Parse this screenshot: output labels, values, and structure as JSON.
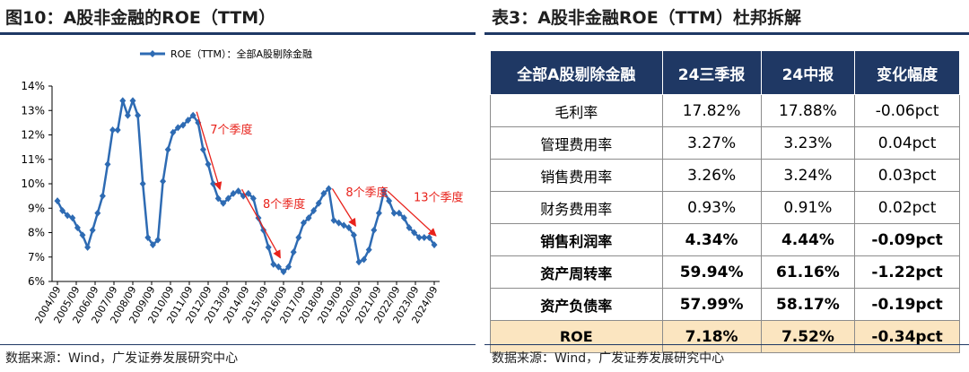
{
  "left": {
    "title": "图10：A股非金融的ROE（TTM）",
    "source": "数据来源：Wind，广发证券发展研究中心"
  },
  "right": {
    "title": "表3：A股非金融ROE（TTM）杜邦拆解",
    "source": "数据来源：Wind，广发证券发展研究中心"
  },
  "colors": {
    "line": "#2e6bb3",
    "header": "#1f3864",
    "roe_row": "#fbe5c0",
    "annotation": "#e8221b"
  },
  "chart_data": {
    "type": "line",
    "legend": "ROE（TTM）：全部A股剔除金融",
    "legend_position": "top",
    "ylim": [
      6,
      14
    ],
    "yticks": [
      "6%",
      "7%",
      "8%",
      "9%",
      "10%",
      "11%",
      "12%",
      "13%",
      "14%"
    ],
    "xlabels": [
      "2004/09",
      "2005/09",
      "2006/09",
      "2007/09",
      "2008/09",
      "2009/09",
      "2010/09",
      "2011/09",
      "2012/09",
      "2013/09",
      "2014/09",
      "2015/09",
      "2016/09",
      "2017/09",
      "2018/09",
      "2019/09",
      "2020/09",
      "2021/09",
      "2022/09",
      "2023/09",
      "2024/09"
    ],
    "series": [
      {
        "name": "ROE（TTM）：全部A股剔除金融",
        "values": [
          9.3,
          8.9,
          8.7,
          8.6,
          8.2,
          7.9,
          7.4,
          8.1,
          8.8,
          9.5,
          10.8,
          12.2,
          12.2,
          13.4,
          12.8,
          13.4,
          12.8,
          10.0,
          7.8,
          7.5,
          7.7,
          10.1,
          11.4,
          12.1,
          12.3,
          12.4,
          12.6,
          12.8,
          12.5,
          11.4,
          10.8,
          10.0,
          9.4,
          9.2,
          9.4,
          9.6,
          9.7,
          9.5,
          9.6,
          9.4,
          8.6,
          8.1,
          7.4,
          6.7,
          6.6,
          6.4,
          6.6,
          7.2,
          7.8,
          8.4,
          8.6,
          8.9,
          9.2,
          9.6,
          9.8,
          8.5,
          8.4,
          8.3,
          8.2,
          7.9,
          6.8,
          6.9,
          7.3,
          8.1,
          8.8,
          9.7,
          9.3,
          8.8,
          8.8,
          8.6,
          8.2,
          8.0,
          7.8,
          7.8,
          7.8,
          7.5
        ]
      }
    ],
    "annotations": [
      "7个季度",
      "8个季度",
      "8个季度",
      "13个季度"
    ],
    "grid": false
  },
  "table": {
    "headers": [
      "全部A股剔除金融",
      "24三季报",
      "24中报",
      "变化幅度"
    ],
    "rows": [
      [
        "毛利率",
        "17.82%",
        "17.88%",
        "-0.06pct"
      ],
      [
        "管理费用率",
        "3.27%",
        "3.23%",
        "0.04pct"
      ],
      [
        "销售费用率",
        "3.26%",
        "3.24%",
        "0.03pct"
      ],
      [
        "财务费用率",
        "0.93%",
        "0.91%",
        "0.02pct"
      ],
      [
        "销售利润率",
        "4.34%",
        "4.44%",
        "-0.09pct"
      ],
      [
        "资产周转率",
        "59.94%",
        "61.16%",
        "-1.22pct"
      ],
      [
        "资产负债率",
        "57.99%",
        "58.17%",
        "-0.19pct"
      ],
      [
        "ROE",
        "7.18%",
        "7.52%",
        "-0.34pct"
      ]
    ]
  }
}
